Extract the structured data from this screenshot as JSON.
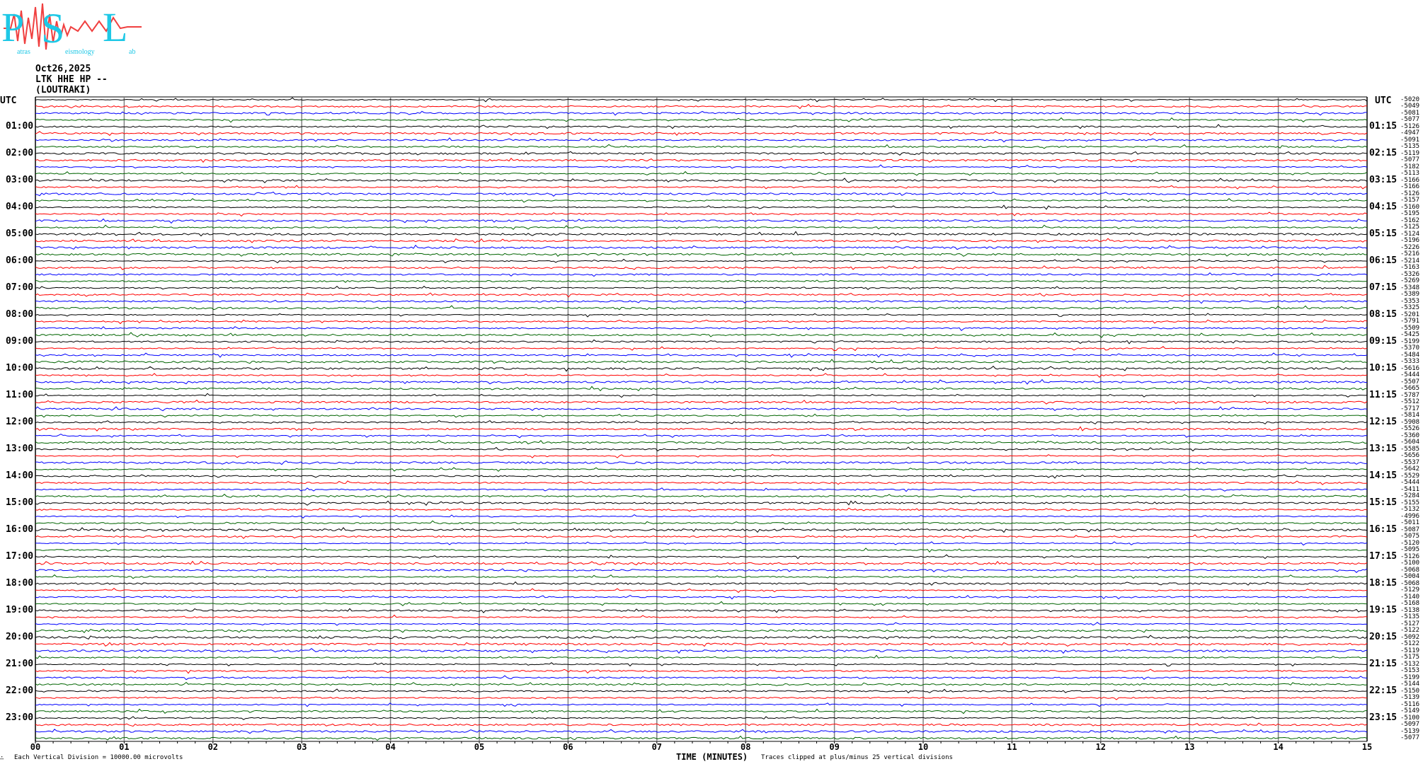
{
  "logo": {
    "letters": [
      "P",
      "S",
      "L"
    ],
    "words": [
      "atras",
      "eismology",
      "ab"
    ]
  },
  "header": {
    "date": "Oct26,2025",
    "station": "LTK HHE HP --",
    "location": "(LOUTRAKI)"
  },
  "utc_left": "UTC",
  "utc_right": "UTC",
  "colors": {
    "trace_cycle": [
      "#000000",
      "#ff0000",
      "#0000ff",
      "#006400"
    ],
    "grid": "#808080",
    "logo_main": "#1ec8e6",
    "logo_wave": "#f04040"
  },
  "chart_data": {
    "type": "line",
    "description_kind": "helicorder",
    "xlabel": "TIME (MINUTES)",
    "x_ticks": [
      "00",
      "01",
      "02",
      "03",
      "04",
      "05",
      "06",
      "07",
      "08",
      "09",
      "10",
      "11",
      "12",
      "13",
      "14",
      "15"
    ],
    "xlim": [
      0,
      15
    ],
    "grid": true,
    "left_labels": [
      "01:00",
      "02:00",
      "03:00",
      "04:00",
      "05:00",
      "06:00",
      "07:00",
      "08:00",
      "09:00",
      "10:00",
      "11:00",
      "12:00",
      "13:00",
      "14:00",
      "15:00",
      "16:00",
      "17:00",
      "18:00",
      "19:00",
      "20:00",
      "21:00",
      "22:00",
      "23:00"
    ],
    "right_labels": [
      "01:15",
      "02:15",
      "03:15",
      "04:15",
      "05:15",
      "06:15",
      "07:15",
      "08:15",
      "09:15",
      "10:15",
      "11:15",
      "12:15",
      "13:15",
      "14:15",
      "15:15",
      "16:15",
      "17:15",
      "18:15",
      "19:15",
      "20:15",
      "21:15",
      "22:15",
      "23:15"
    ],
    "trace_offsets": [
      "-5020",
      "-5049",
      "-5081",
      "-5077",
      "-5126",
      "-4947",
      "-5091",
      "-5135",
      "-5119",
      "-5077",
      "-5182",
      "-5113",
      "-5166",
      "-5166",
      "-5126",
      "-5157",
      "-5160",
      "-5195",
      "-5162",
      "-5125",
      "-5124",
      "-5196",
      "-5226",
      "-5216",
      "-5214",
      "-5163",
      "-5326",
      "-5269",
      "-5348",
      "-5389",
      "-5353",
      "-5325",
      "-5201",
      "-5791",
      "-5509",
      "-5425",
      "-5199",
      "-5370",
      "-5484",
      "-5333",
      "-5616",
      "-5444",
      "-5507",
      "-5665",
      "-5787",
      "-5512",
      "-5717",
      "-5814",
      "-5908",
      "-5526",
      "-5360",
      "-5604",
      "-5585",
      "-5656",
      "-5537",
      "-5642",
      "-5529",
      "-5444",
      "-5411",
      "-5284",
      "-5155",
      "-5132",
      "-4996",
      "-5011",
      "-5087",
      "-5075",
      "-5120",
      "-5095",
      "-5126",
      "-5100",
      "-5068",
      "-5004",
      "-5068",
      "-5129",
      "-5140",
      "-5168",
      "-5138",
      "-5135",
      "-5127",
      "-5122",
      "-5092",
      "-5122",
      "-5119",
      "-5175",
      "-5132",
      "-5153",
      "-5199",
      "-5144",
      "-5150",
      "-5139",
      "-5116",
      "-5149",
      "-5100",
      "-5097",
      "-5139",
      "-5077"
    ]
  },
  "footer": {
    "mark": "∴",
    "scale_note": "Each Vertical Division = 10000.00 microvolts",
    "clip_note": "Traces clipped at plus/minus 25 vertical divisions"
  }
}
